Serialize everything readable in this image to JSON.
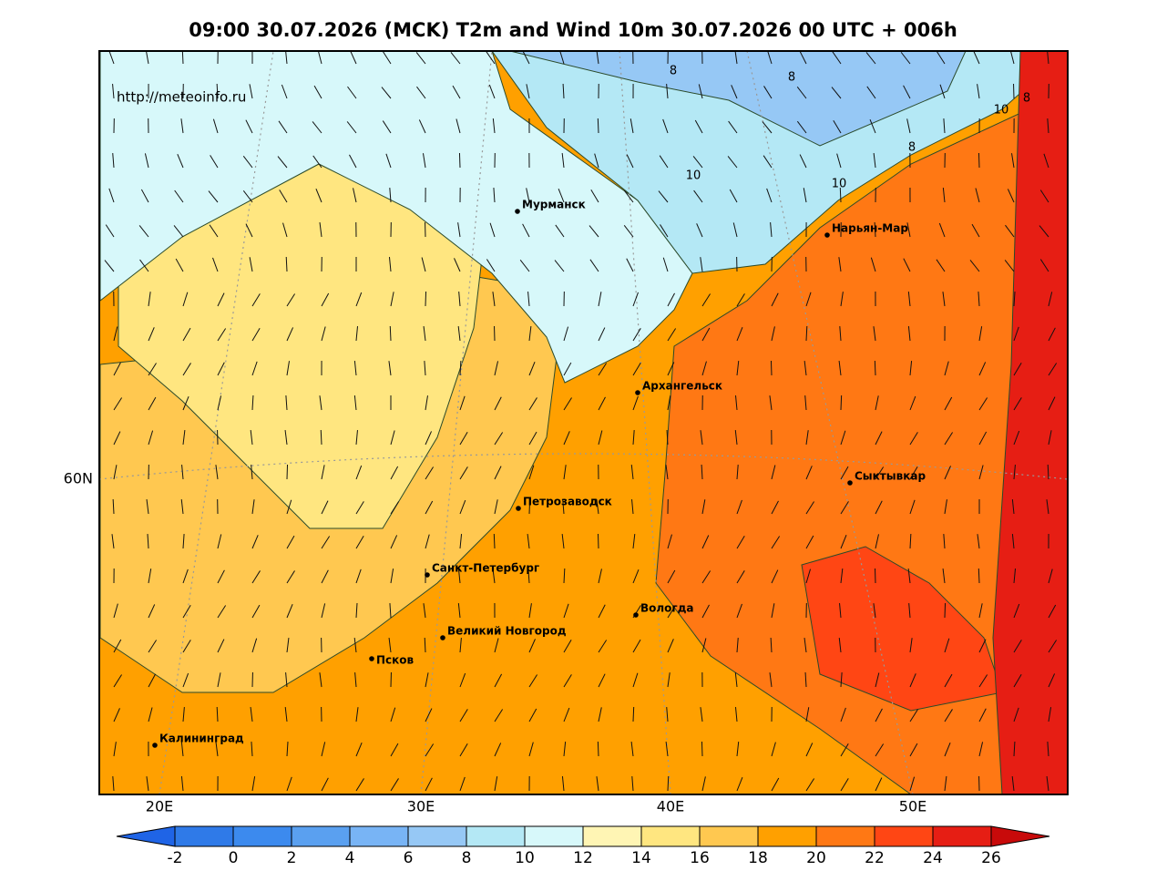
{
  "title": "09:00 30.07.2026 (MCK) T2m and Wind 10m 30.07.2026 00 UTC + 006h",
  "source": "http://meteoinfo.ru",
  "cities": [
    "Мурманск",
    "Нарьян-Мар",
    "Архангельск",
    "Сыктывкар",
    "Петрозаводск",
    "Санкт-Петербург",
    "Вологда",
    "Великий Новгород",
    "Псков",
    "Калининград"
  ],
  "contour_labels": [
    8,
    8,
    8,
    8,
    10,
    10,
    10
  ],
  "lat_labels": [
    "60N"
  ],
  "lon_labels": [
    "20E",
    "30E",
    "40E",
    "50E"
  ],
  "colorbar": {
    "ticks": [
      -2,
      0,
      2,
      4,
      6,
      8,
      10,
      12,
      14,
      16,
      18,
      20,
      22,
      24,
      26
    ],
    "colors": [
      "#1f64e6",
      "#2f7ae8",
      "#3c8aee",
      "#5aa0f0",
      "#78b4f5",
      "#96c8f5",
      "#b4e8f5",
      "#d7f8fa",
      "#fff5b4",
      "#ffe680",
      "#ffc850",
      "#ffa000",
      "#ff7814",
      "#ff4614",
      "#e61e14",
      "#c80a0a"
    ]
  }
}
